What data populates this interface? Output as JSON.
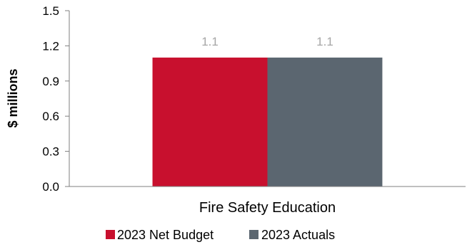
{
  "chart_data": {
    "type": "bar",
    "categories": [
      "Fire Safety Education"
    ],
    "series": [
      {
        "name": "2023 Net Budget",
        "values": [
          1.1
        ],
        "color": "#c8102e"
      },
      {
        "name": "2023 Actuals",
        "values": [
          1.1
        ],
        "color": "#5b6670"
      }
    ],
    "data_labels": [
      "1.1",
      "1.1"
    ],
    "ylabel": "$ millions",
    "xlabel": "",
    "ylim": [
      0,
      1.5
    ],
    "yticks": [
      "0.0",
      "0.3",
      "0.6",
      "0.9",
      "1.2",
      "1.5"
    ],
    "grid": false,
    "legend": "bottom"
  }
}
